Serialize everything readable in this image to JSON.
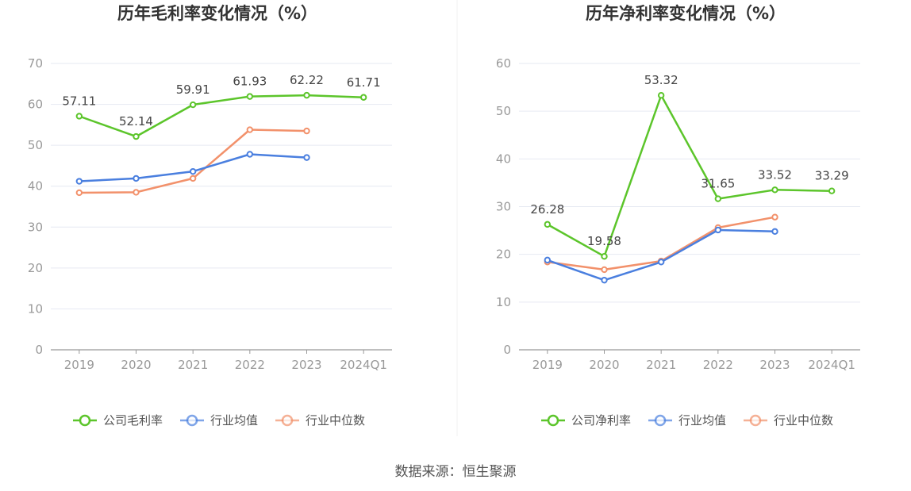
{
  "source": "数据来源：恒生聚源",
  "colors": {
    "company": "#5CC52B",
    "average": "#4A7FDF",
    "median": "#F2916B",
    "grid": "#E6E9F2",
    "axis": "#999999"
  },
  "chart_data": [
    {
      "type": "line",
      "title": "历年毛利率变化情况（%）",
      "categories": [
        "2019",
        "2020",
        "2021",
        "2022",
        "2023",
        "2024Q1"
      ],
      "ylim": [
        0,
        70
      ],
      "yticks": [
        0,
        10,
        20,
        30,
        40,
        50,
        60,
        70
      ],
      "series": [
        {
          "name": "公司毛利率",
          "key": "company",
          "values": [
            57.11,
            52.14,
            59.91,
            61.93,
            62.22,
            61.71
          ],
          "labels": [
            "57.11",
            "52.14",
            "59.91",
            "61.93",
            "62.22",
            "61.71"
          ]
        },
        {
          "name": "行业均值",
          "key": "average",
          "values": [
            41.2,
            41.9,
            43.6,
            47.8,
            47.0,
            null
          ]
        },
        {
          "name": "行业中位数",
          "key": "median",
          "values": [
            38.4,
            38.5,
            41.9,
            53.8,
            53.5,
            null
          ]
        }
      ]
    },
    {
      "type": "line",
      "title": "历年净利率变化情况（%）",
      "categories": [
        "2019",
        "2020",
        "2021",
        "2022",
        "2023",
        "2024Q1"
      ],
      "ylim": [
        0,
        60
      ],
      "yticks": [
        0,
        10,
        20,
        30,
        40,
        50,
        60
      ],
      "series": [
        {
          "name": "公司净利率",
          "key": "company",
          "values": [
            26.28,
            19.58,
            53.32,
            31.65,
            33.52,
            33.29
          ],
          "labels": [
            "26.28",
            "19.58",
            "53.32",
            "31.65",
            "33.52",
            "33.29"
          ]
        },
        {
          "name": "行业均值",
          "key": "average",
          "values": [
            18.8,
            14.6,
            18.4,
            25.1,
            24.8,
            null
          ]
        },
        {
          "name": "行业中位数",
          "key": "median",
          "values": [
            18.4,
            16.8,
            18.6,
            25.6,
            27.8,
            null
          ]
        }
      ]
    }
  ]
}
